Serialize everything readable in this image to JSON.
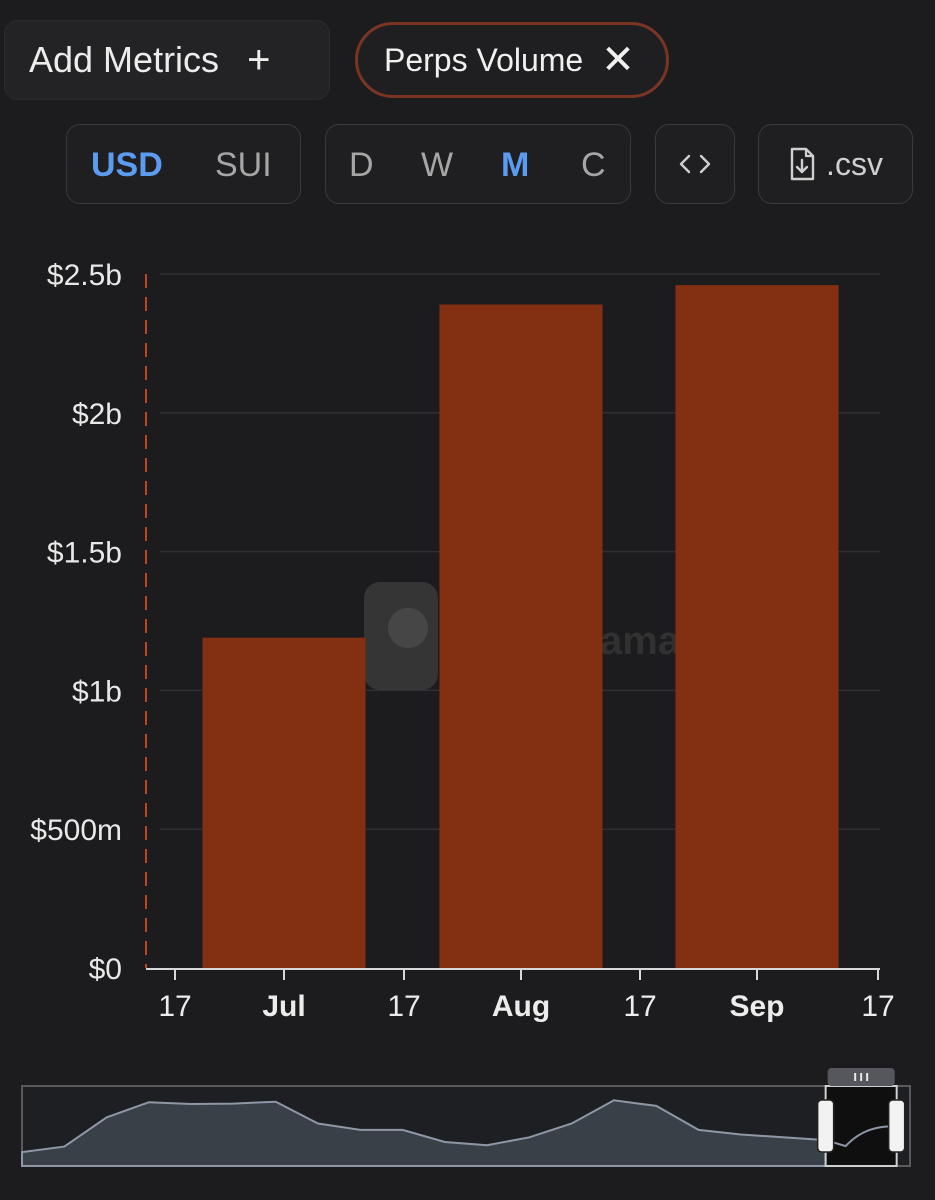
{
  "toolbar": {
    "add_metrics_label": "Add Metrics",
    "metric_chip_label": "Perps Volume",
    "currency_options": [
      "USD",
      "SUI"
    ],
    "currency_selected": "USD",
    "period_options": [
      "D",
      "W",
      "M",
      "C"
    ],
    "period_selected": "M",
    "embed_icon": "code-icon",
    "csv_label": ".csv",
    "csv_icon": "file-download-icon"
  },
  "watermark": {
    "text": "ama"
  },
  "colors": {
    "bar": "#832f12",
    "accent_blue": "#5b9cf0",
    "chip_border": "#7a3422",
    "background": "#1c1c1e"
  },
  "chart_data": {
    "type": "bar",
    "categories": [
      "Jul",
      "Aug",
      "Sep"
    ],
    "values": [
      1.19,
      2.39,
      2.46
    ],
    "value_unit": "billion USD",
    "ylim": [
      0,
      2.5
    ],
    "yticks": [
      {
        "value": 0,
        "label": "$0"
      },
      {
        "value": 0.5,
        "label": "$500m"
      },
      {
        "value": 1,
        "label": "$1b"
      },
      {
        "value": 1.5,
        "label": "$1.5b"
      },
      {
        "value": 2,
        "label": "$2b"
      },
      {
        "value": 2.5,
        "label": "$2.5b"
      }
    ],
    "xticks": [
      {
        "label": "17",
        "bold": false
      },
      {
        "label": "Jul",
        "bold": true
      },
      {
        "label": "17",
        "bold": false
      },
      {
        "label": "Aug",
        "bold": true
      },
      {
        "label": "17",
        "bold": false
      },
      {
        "label": "Sep",
        "bold": true
      },
      {
        "label": "17",
        "bold": false
      }
    ],
    "grid": true,
    "legend": "none",
    "navigator": {
      "series": [
        0.3,
        0.42,
        1.05,
        1.38,
        1.34,
        1.35,
        1.39,
        0.92,
        0.78,
        0.78,
        0.52,
        0.45,
        0.62,
        0.92,
        1.42,
        1.3,
        0.78,
        0.68,
        0.62,
        0.56,
        0.56,
        0.56
      ],
      "selected_range": [
        0.905,
        0.985
      ]
    }
  }
}
